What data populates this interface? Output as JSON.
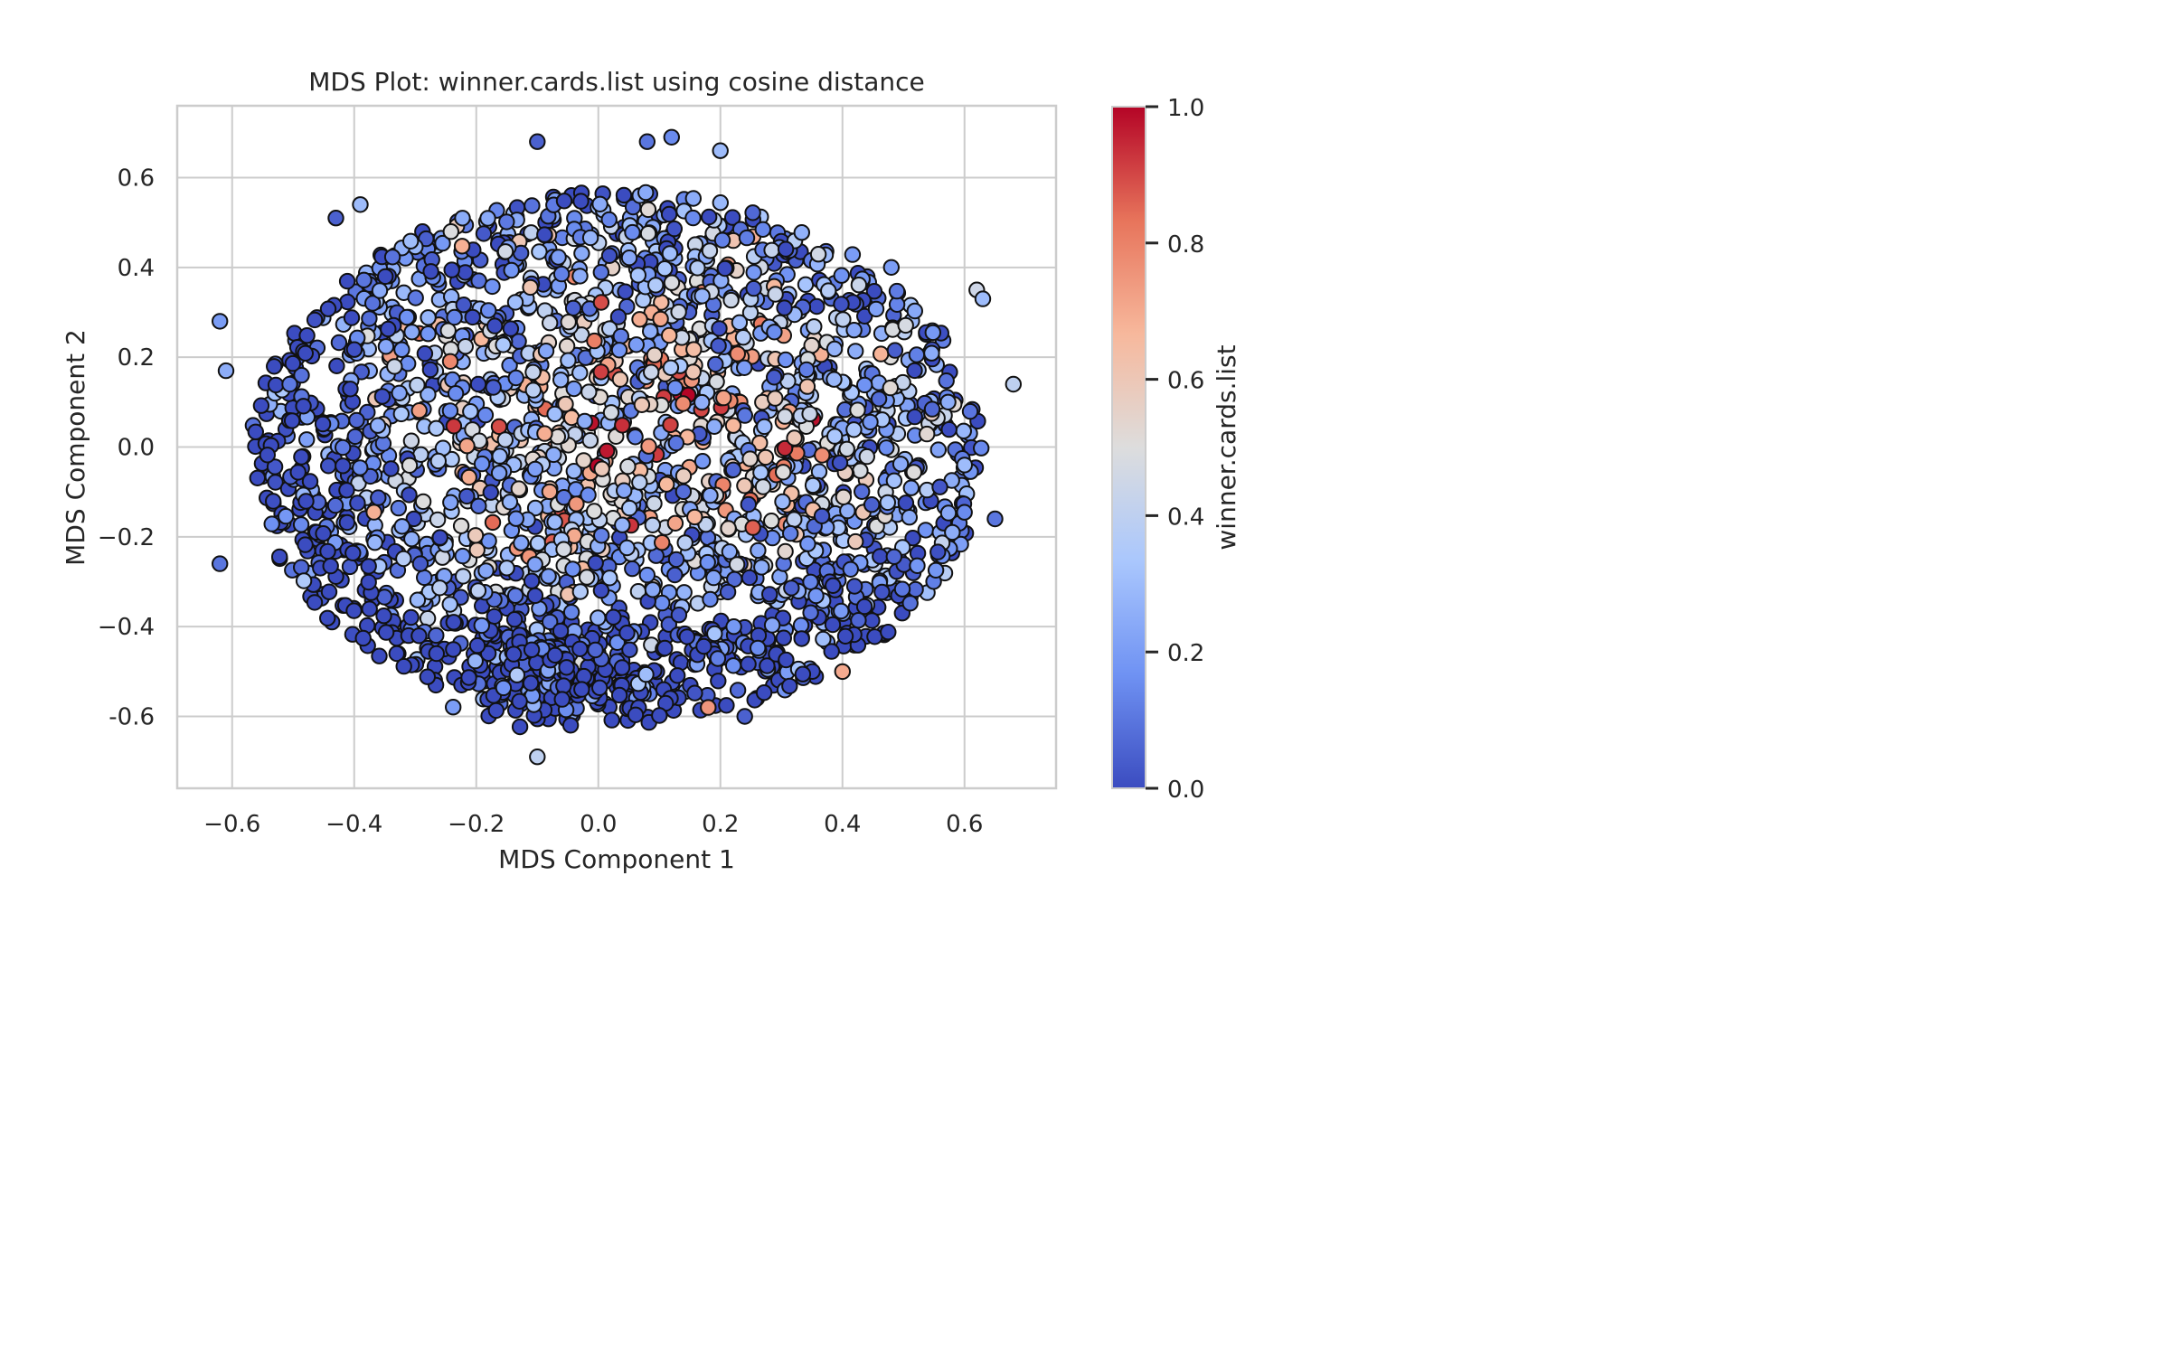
{
  "chart_data": {
    "type": "scatter",
    "title": "MDS Plot: winner.cards.list using cosine distance",
    "xlabel": "MDS Component 1",
    "ylabel": "MDS Component 2",
    "xlim": [
      -0.69,
      0.75
    ],
    "ylim": [
      -0.76,
      0.76
    ],
    "xticks": [
      -0.6,
      -0.4,
      -0.2,
      0.0,
      0.2,
      0.4,
      0.6
    ],
    "xtick_labels": [
      "−0.6",
      "−0.4",
      "−0.2",
      "0.0",
      "0.2",
      "0.4",
      "0.6"
    ],
    "yticks": [
      -0.6,
      -0.4,
      -0.2,
      0.0,
      0.2,
      0.4,
      0.6
    ],
    "ytick_labels": [
      "-0.6",
      "−0.4",
      "−0.2",
      "0.0",
      "0.2",
      "0.4",
      "0.6"
    ],
    "grid": true,
    "colormap": "coolwarm",
    "colormap_stops": [
      "#3b4cc0",
      "#6f92f3",
      "#aac7fd",
      "#dddddd",
      "#f7b89c",
      "#e7745b",
      "#b40426"
    ],
    "colorbar": {
      "label": "winner.cards.list",
      "range": [
        0,
        1
      ],
      "ticks": [
        0.0,
        0.2,
        0.4,
        0.6,
        0.8,
        1.0
      ],
      "tick_labels": [
        "0.0",
        "0.2",
        "0.4",
        "0.6",
        "0.8",
        "1.0"
      ]
    },
    "marker_edge_color": "#111111",
    "points": [
      {
        "x": -0.62,
        "y": 0.28,
        "c": 0.2
      },
      {
        "x": -0.61,
        "y": 0.17,
        "c": 0.25
      },
      {
        "x": -0.62,
        "y": -0.26,
        "c": 0.1
      },
      {
        "x": -0.1,
        "y": 0.68,
        "c": 0.05
      },
      {
        "x": 0.08,
        "y": 0.68,
        "c": 0.1
      },
      {
        "x": 0.12,
        "y": 0.69,
        "c": 0.15
      },
      {
        "x": 0.2,
        "y": 0.66,
        "c": 0.3
      },
      {
        "x": 0.68,
        "y": 0.14,
        "c": 0.4
      },
      {
        "x": 0.65,
        "y": -0.16,
        "c": 0.1
      },
      {
        "x": -0.1,
        "y": -0.69,
        "c": 0.4
      },
      {
        "x": 0.24,
        "y": -0.6,
        "c": 0.05
      },
      {
        "x": 0.18,
        "y": -0.58,
        "c": 0.75
      },
      {
        "x": 0.4,
        "y": -0.5,
        "c": 0.7
      },
      {
        "x": 0.62,
        "y": 0.35,
        "c": 0.45
      },
      {
        "x": 0.63,
        "y": 0.33,
        "c": 0.3
      },
      {
        "x": 0.48,
        "y": 0.4,
        "c": 0.2
      },
      {
        "x": -0.43,
        "y": 0.51,
        "c": 0.05
      },
      {
        "x": -0.39,
        "y": 0.54,
        "c": 0.3
      },
      {
        "x": 0.58,
        "y": -0.19,
        "c": 0.25
      },
      {
        "x": 0.6,
        "y": -0.04,
        "c": 0.3
      }
    ],
    "bulk_point_count": 2400,
    "bulk_cloud": {
      "center": [
        0.03,
        -0.02
      ],
      "radius_x": 0.6,
      "radius_y": 0.59,
      "color_trend": "red/orange values (0.6–1.0) concentrated in the central region; blue values (0.0–0.3) dominate the left edge and the bottom-center cluster"
    }
  }
}
